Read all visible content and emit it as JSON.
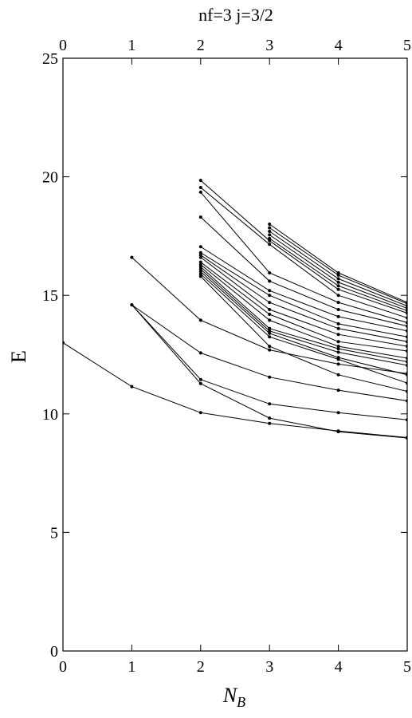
{
  "chart_data": {
    "type": "line",
    "title": "nf=3   j=3/2",
    "xlabel_base": "N",
    "xlabel_sub": "B",
    "ylabel": "E",
    "xlim": [
      0,
      5
    ],
    "ylim": [
      0,
      25
    ],
    "x_ticks": [
      0,
      1,
      2,
      3,
      4,
      5
    ],
    "y_ticks": [
      0,
      5,
      10,
      15,
      20,
      25
    ],
    "x_tick_labels": [
      "0",
      "1",
      "2",
      "3",
      "4",
      "5"
    ],
    "y_tick_labels": [
      "0",
      "5",
      "10",
      "15",
      "20",
      "25"
    ],
    "top_axis_ticks": [
      "0",
      "1",
      "2",
      "3",
      "4",
      "5"
    ],
    "grid": false,
    "line_color": "#000000",
    "series": [
      {
        "x": [
          0,
          1,
          2,
          3,
          4,
          5
        ],
        "y": [
          13.0,
          11.15,
          10.05,
          9.6,
          9.28,
          9.0
        ]
      },
      {
        "x": [
          1,
          2,
          3,
          4,
          5
        ],
        "y": [
          14.6,
          11.28,
          9.82,
          9.25,
          8.98
        ]
      },
      {
        "x": [
          1,
          2,
          3,
          4,
          5
        ],
        "y": [
          14.6,
          11.45,
          10.42,
          10.05,
          9.75
        ]
      },
      {
        "x": [
          1,
          2,
          3,
          4,
          5
        ],
        "y": [
          14.6,
          12.57,
          11.55,
          11.0,
          10.55
        ]
      },
      {
        "x": [
          1,
          2,
          3,
          4,
          5
        ],
        "y": [
          16.6,
          13.95,
          12.7,
          12.1,
          11.7
        ]
      },
      {
        "x": [
          2,
          3,
          4,
          5
        ],
        "y": [
          15.8,
          12.85,
          11.65,
          10.95
        ]
      },
      {
        "x": [
          2,
          3,
          4,
          5
        ],
        "y": [
          15.9,
          13.25,
          12.3,
          11.3
        ]
      },
      {
        "x": [
          2,
          3,
          4,
          5
        ],
        "y": [
          16.0,
          13.4,
          12.38,
          11.65
        ]
      },
      {
        "x": [
          2,
          3,
          4,
          5
        ],
        "y": [
          16.1,
          13.5,
          12.6,
          12.05
        ]
      },
      {
        "x": [
          2,
          3,
          4,
          5
        ],
        "y": [
          16.2,
          13.6,
          12.75,
          12.2
        ]
      },
      {
        "x": [
          2,
          3,
          4,
          5
        ],
        "y": [
          16.3,
          13.95,
          12.85,
          12.35
        ]
      },
      {
        "x": [
          2,
          3,
          4,
          5
        ],
        "y": [
          16.4,
          14.2,
          13.05,
          12.65
        ]
      },
      {
        "x": [
          2,
          3,
          4,
          5
        ],
        "y": [
          16.6,
          14.4,
          13.35,
          12.85
        ]
      },
      {
        "x": [
          2,
          3,
          4,
          5
        ],
        "y": [
          16.7,
          14.7,
          13.6,
          13.05
        ]
      },
      {
        "x": [
          2,
          3,
          4,
          5
        ],
        "y": [
          16.8,
          15.0,
          13.8,
          13.25
        ]
      },
      {
        "x": [
          2,
          3,
          4,
          5
        ],
        "y": [
          17.05,
          15.2,
          14.1,
          13.5
        ]
      },
      {
        "x": [
          2,
          3,
          4,
          5
        ],
        "y": [
          18.3,
          15.6,
          14.4,
          13.7
        ]
      },
      {
        "x": [
          2,
          3,
          4,
          5
        ],
        "y": [
          19.35,
          15.95,
          14.7,
          13.85
        ]
      },
      {
        "x": [
          2,
          3,
          4,
          5
        ],
        "y": [
          19.55,
          17.15,
          15.0,
          14.05
        ]
      },
      {
        "x": [
          2,
          3,
          4,
          5
        ],
        "y": [
          19.85,
          17.3,
          15.25,
          14.25
        ]
      },
      {
        "x": [
          3,
          4,
          5
        ],
        "y": [
          17.4,
          15.4,
          14.35
        ]
      },
      {
        "x": [
          3,
          4,
          5
        ],
        "y": [
          17.55,
          15.55,
          14.45
        ]
      },
      {
        "x": [
          3,
          4,
          5
        ],
        "y": [
          17.7,
          15.7,
          14.55
        ]
      },
      {
        "x": [
          3,
          4,
          5
        ],
        "y": [
          17.85,
          15.85,
          14.65
        ]
      },
      {
        "x": [
          3,
          4,
          5
        ],
        "y": [
          18.0,
          15.95,
          14.7
        ]
      }
    ]
  }
}
